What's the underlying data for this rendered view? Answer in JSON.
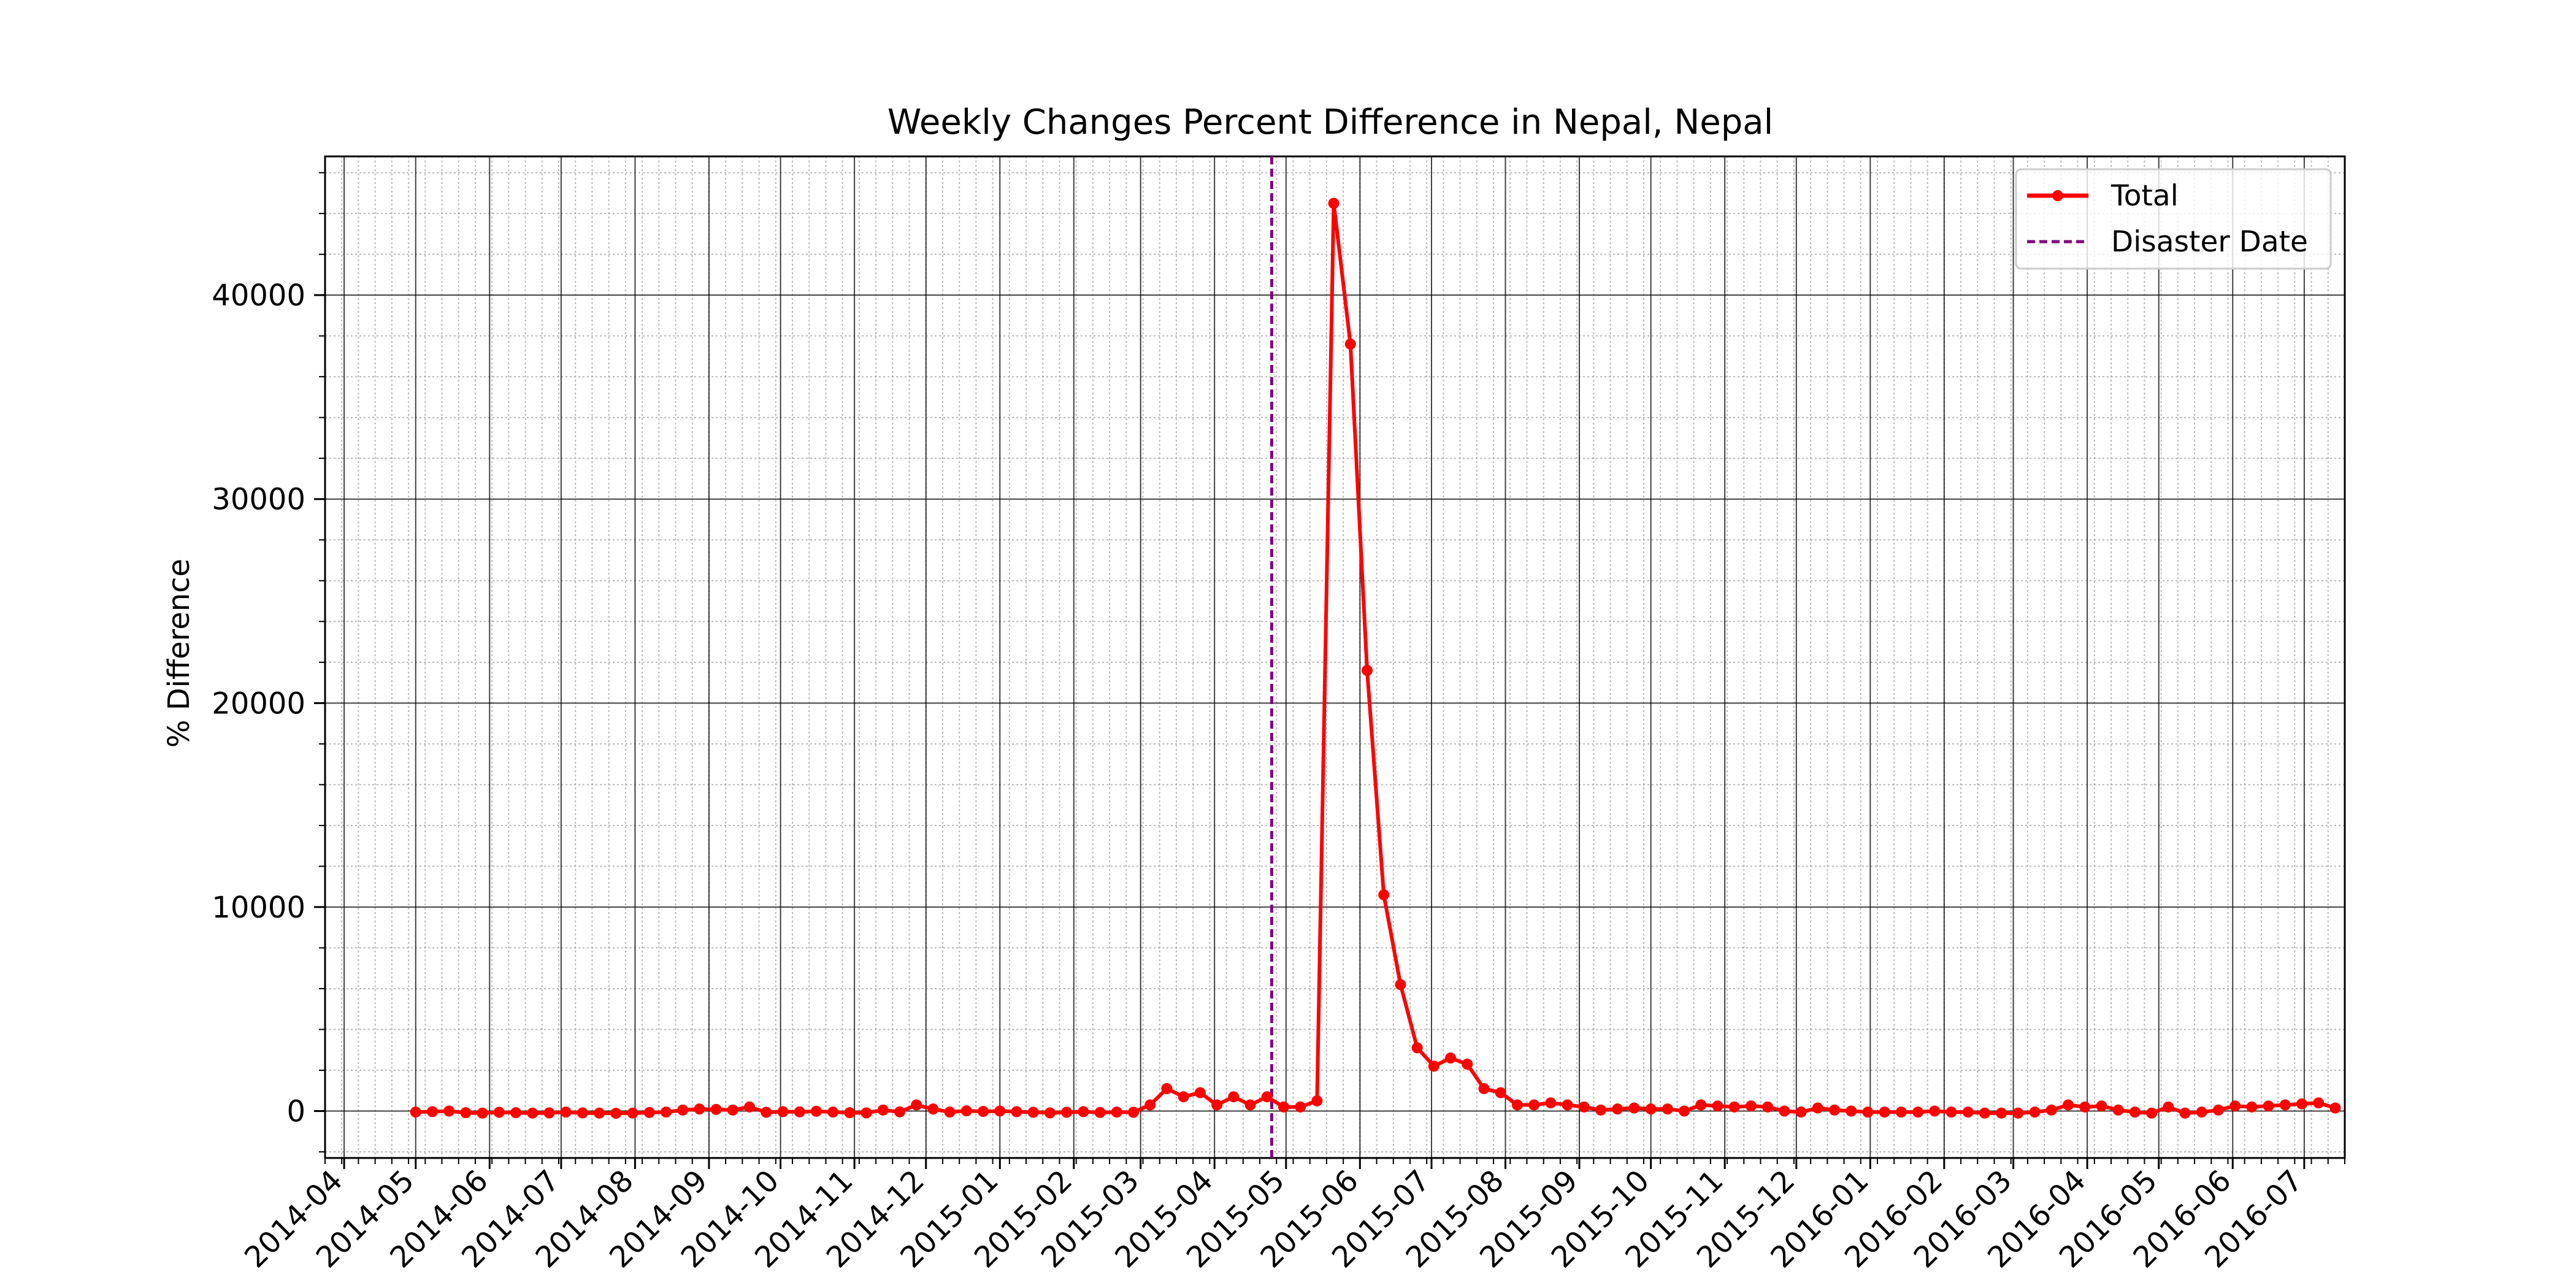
{
  "chart_data": {
    "type": "line",
    "title": "Weekly Changes Percent Difference in Nepal, Nepal",
    "xlabel": "",
    "ylabel": "% Difference",
    "x_ticks": [
      "2014-04",
      "2014-05",
      "2014-06",
      "2014-07",
      "2014-08",
      "2014-09",
      "2014-10",
      "2014-11",
      "2014-12",
      "2015-01",
      "2015-02",
      "2015-03",
      "2015-04",
      "2015-05",
      "2015-06",
      "2015-07",
      "2015-08",
      "2015-09",
      "2015-10",
      "2015-11",
      "2015-12",
      "2016-01",
      "2016-02",
      "2016-03",
      "2016-04",
      "2016-05",
      "2016-06",
      "2016-07"
    ],
    "y_ticks": [
      0,
      10000,
      20000,
      30000,
      40000
    ],
    "xlim": [
      "2014-03-24",
      "2016-07-18"
    ],
    "ylim": [
      -2300,
      46800
    ],
    "grid": "major and minor",
    "legend_position": "top-right",
    "start_date": "2014-05-01",
    "series": [
      {
        "name": "Total",
        "color": "#ff0000",
        "marker": "circle",
        "values": [
          -50,
          -30,
          0,
          -80,
          -100,
          -60,
          -80,
          -100,
          -90,
          -50,
          -90,
          -100,
          -110,
          -100,
          -70,
          -50,
          50,
          100,
          80,
          50,
          200,
          -60,
          -30,
          -40,
          -10,
          -50,
          -80,
          -90,
          50,
          -40,
          300,
          100,
          -50,
          10,
          -20,
          0,
          -30,
          -60,
          -90,
          -60,
          -30,
          -70,
          -50,
          -60,
          300,
          1100,
          700,
          900,
          300,
          700,
          300,
          700,
          200,
          200,
          500,
          44500,
          37600,
          21600,
          10600,
          6200,
          3100,
          2200,
          2600,
          2300,
          1100,
          900,
          300,
          300,
          400,
          300,
          200,
          50,
          100,
          150,
          100,
          100,
          0,
          300,
          250,
          200,
          250,
          200,
          0,
          -50,
          150,
          50,
          0,
          -50,
          -50,
          -50,
          -50,
          0,
          -50,
          -50,
          -100,
          -100,
          -100,
          -50,
          50,
          300,
          200,
          250,
          50,
          -50,
          -100,
          200,
          -100,
          -50,
          50,
          250,
          200,
          250,
          300,
          350,
          400,
          150
        ]
      }
    ],
    "annotations": [
      {
        "name": "Disaster Date",
        "type": "vline",
        "x": "2015-04-25",
        "color": "#800080",
        "style": "dashed"
      }
    ]
  }
}
